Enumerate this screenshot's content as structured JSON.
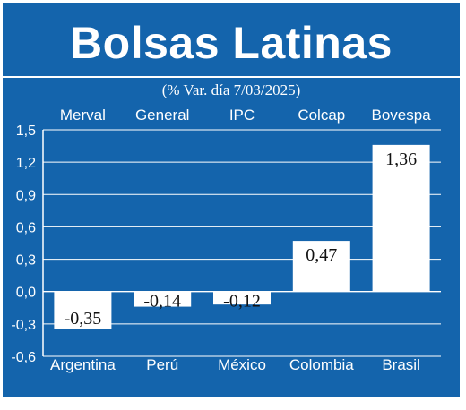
{
  "header": {
    "title": "Bolsas Latinas",
    "subtitle": "(% Var. día 7/03/2025)"
  },
  "chart_data": {
    "type": "bar",
    "title": "Bolsas Latinas",
    "subtitle": "(% Var. día 7/03/2025)",
    "categories": [
      "Argentina",
      "Perú",
      "México",
      "Colombia",
      "Brasil"
    ],
    "indices": [
      "Merval",
      "General",
      "IPC",
      "Colcap",
      "Bovespa"
    ],
    "values": [
      -0.35,
      -0.14,
      -0.12,
      0.47,
      1.36
    ],
    "value_labels": [
      "-0,35",
      "-0,14",
      "-0,12",
      "0,47",
      "1,36"
    ],
    "yticks": [
      "1,5",
      "1,2",
      "0,9",
      "0,6",
      "0,3",
      "0,0",
      "-0,3",
      "-0,6"
    ],
    "ytick_values": [
      1.5,
      1.2,
      0.9,
      0.6,
      0.3,
      0.0,
      -0.3,
      -0.6
    ],
    "ylim": [
      -0.6,
      1.5
    ],
    "grid": true,
    "colors": {
      "background": "#1464ac",
      "bar": "#ffffff",
      "text": "#ffffff"
    }
  }
}
